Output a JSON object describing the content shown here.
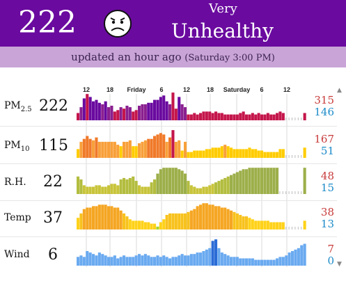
{
  "header": {
    "aqi": "222",
    "level_line1": "Very",
    "level_line2": "Unhealthy",
    "face_icon": "sad-face-icon",
    "colors": {
      "header_bg": "#6a0a9f",
      "subbar_bg": "#c9a4d6"
    }
  },
  "status": {
    "updated": "updated an hour ago",
    "time": "(Saturday 3:00 PM)"
  },
  "timeline": {
    "labels": [
      "12",
      "18",
      "Friday",
      "6",
      "12",
      "18",
      "Saturday",
      "6",
      "12"
    ]
  },
  "rows": [
    {
      "key": "pm25",
      "label": "PM",
      "sub": "2.5",
      "value": "222",
      "max": "315",
      "min": "146"
    },
    {
      "key": "pm10",
      "label": "PM",
      "sub": "10",
      "value": "115",
      "max": "167",
      "min": "51"
    },
    {
      "key": "rh",
      "label": "R.H.",
      "sub": "",
      "value": "22",
      "max": "48",
      "min": "15"
    },
    {
      "key": "temp",
      "label": "Temp",
      "sub": "",
      "value": "37",
      "max": "38",
      "min": "13"
    },
    {
      "key": "wind",
      "label": "Wind",
      "sub": "",
      "value": "6",
      "max": "7",
      "min": "0"
    }
  ],
  "chart_data": {
    "type": "bar",
    "series": [
      {
        "name": "PM2.5",
        "values": [
          0.25,
          0.45,
          0.75,
          0.9,
          0.8,
          0.65,
          0.7,
          0.6,
          0.55,
          0.65,
          0.45,
          0.5,
          0.3,
          0.35,
          0.45,
          0.4,
          0.5,
          0.45,
          0.3,
          0.35,
          0.5,
          0.55,
          0.55,
          0.6,
          0.6,
          0.7,
          0.7,
          0.8,
          0.85,
          0.65,
          0.55,
          0.95,
          0.4,
          0.8,
          0.55,
          0.45,
          0.2,
          0.2,
          0.25,
          0.2,
          0.25,
          0.3,
          0.3,
          0.3,
          0.25,
          0.3,
          0.25,
          0.25,
          0.2,
          0.2,
          0.2,
          0.2,
          0.2,
          0.25,
          0.3,
          0.2,
          0.2,
          0.25,
          0.2,
          0.25,
          0.2,
          0.2,
          0.25,
          0.2,
          0.2,
          0.25,
          0.3,
          0.25,
          0.0,
          0.0,
          0.0,
          0.0,
          0.0,
          0.0,
          0.25
        ]
      },
      {
        "name": "PM10",
        "values": [
          0.3,
          0.55,
          0.65,
          0.75,
          0.65,
          0.6,
          0.7,
          0.55,
          0.55,
          0.55,
          0.55,
          0.55,
          0.55,
          0.45,
          0.4,
          0.55,
          0.55,
          0.6,
          0.4,
          0.4,
          0.5,
          0.55,
          0.6,
          0.65,
          0.65,
          0.75,
          0.8,
          0.85,
          0.8,
          0.55,
          0.7,
          0.95,
          0.55,
          0.6,
          0.25,
          0.55,
          0.2,
          0.2,
          0.25,
          0.25,
          0.25,
          0.25,
          0.3,
          0.3,
          0.35,
          0.35,
          0.35,
          0.4,
          0.45,
          0.4,
          0.35,
          0.3,
          0.3,
          0.3,
          0.3,
          0.3,
          0.35,
          0.3,
          0.3,
          0.25,
          0.25,
          0.2,
          0.2,
          0.2,
          0.2,
          0.2,
          0.3,
          0.3,
          0.0,
          0.0,
          0.0,
          0.0,
          0.0,
          0.0,
          0.35
        ]
      },
      {
        "name": "R.H.",
        "values": [
          0.6,
          0.5,
          0.3,
          0.25,
          0.25,
          0.25,
          0.3,
          0.3,
          0.25,
          0.25,
          0.3,
          0.35,
          0.35,
          0.3,
          0.5,
          0.55,
          0.5,
          0.55,
          0.6,
          0.45,
          0.3,
          0.25,
          0.25,
          0.25,
          0.4,
          0.5,
          0.7,
          0.85,
          0.9,
          0.9,
          0.9,
          0.9,
          0.9,
          0.85,
          0.8,
          0.7,
          0.45,
          0.3,
          0.25,
          0.2,
          0.2,
          0.25,
          0.25,
          0.3,
          0.35,
          0.4,
          0.45,
          0.5,
          0.55,
          0.6,
          0.65,
          0.7,
          0.75,
          0.8,
          0.85,
          0.85,
          0.9,
          0.9,
          0.9,
          0.9,
          0.9,
          0.9,
          0.9,
          0.9,
          0.9,
          0.9,
          0.0,
          0.0,
          0.0,
          0.0,
          0.0,
          0.0,
          0.0,
          0.0,
          0.9
        ]
      },
      {
        "name": "Temp",
        "values": [
          0.4,
          0.55,
          0.7,
          0.75,
          0.75,
          0.8,
          0.8,
          0.85,
          0.85,
          0.85,
          0.8,
          0.8,
          0.75,
          0.75,
          0.65,
          0.55,
          0.45,
          0.35,
          0.3,
          0.3,
          0.3,
          0.3,
          0.25,
          0.25,
          0.2,
          0.2,
          0.1,
          0.25,
          0.35,
          0.5,
          0.55,
          0.55,
          0.55,
          0.55,
          0.55,
          0.55,
          0.6,
          0.65,
          0.7,
          0.8,
          0.85,
          0.9,
          0.9,
          0.85,
          0.85,
          0.8,
          0.8,
          0.75,
          0.75,
          0.7,
          0.65,
          0.6,
          0.55,
          0.5,
          0.45,
          0.45,
          0.4,
          0.35,
          0.3,
          0.3,
          0.3,
          0.3,
          0.3,
          0.25,
          0.25,
          0.25,
          0.25,
          0.25,
          0.0,
          0.0,
          0.0,
          0.0,
          0.0,
          0.0,
          0.3
        ]
      },
      {
        "name": "Wind",
        "values": [
          0.3,
          0.35,
          0.3,
          0.5,
          0.45,
          0.4,
          0.35,
          0.45,
          0.4,
          0.35,
          0.3,
          0.3,
          0.35,
          0.25,
          0.3,
          0.35,
          0.3,
          0.3,
          0.3,
          0.35,
          0.4,
          0.35,
          0.4,
          0.35,
          0.3,
          0.3,
          0.35,
          0.3,
          0.35,
          0.3,
          0.25,
          0.3,
          0.3,
          0.35,
          0.4,
          0.35,
          0.35,
          0.4,
          0.4,
          0.45,
          0.45,
          0.5,
          0.55,
          0.6,
          0.85,
          0.9,
          0.6,
          0.45,
          0.4,
          0.35,
          0.3,
          0.3,
          0.3,
          0.25,
          0.25,
          0.25,
          0.25,
          0.25,
          0.2,
          0.2,
          0.2,
          0.2,
          0.2,
          0.2,
          0.2,
          0.25,
          0.3,
          0.3,
          0.35,
          0.45,
          0.5,
          0.55,
          0.6,
          0.7,
          0.75
        ]
      }
    ]
  }
}
